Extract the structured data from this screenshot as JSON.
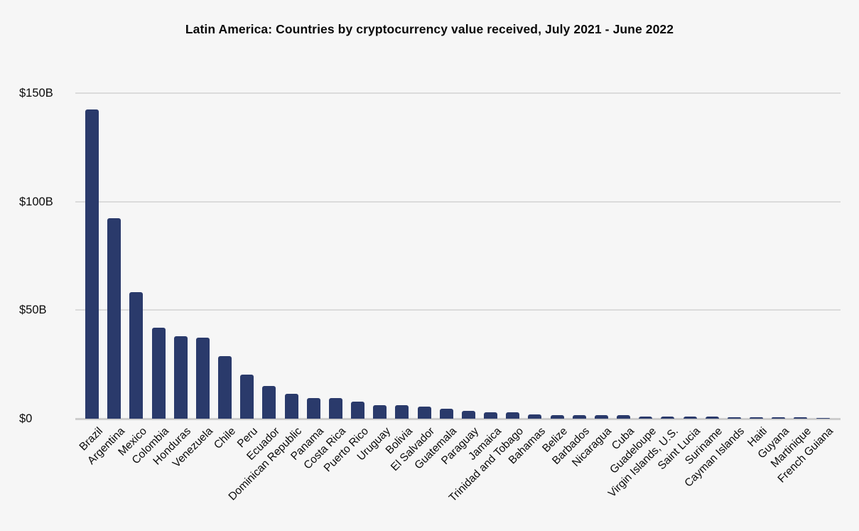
{
  "title": "Latin America: Countries by cryptocurrency value received, July 2021 - June 2022",
  "colors": {
    "bar": "#2a3a6b",
    "background": "#f6f6f6",
    "gridline": "#dbdbdb",
    "axis_line": "#cdcdcd",
    "text": "#0a0a0a"
  },
  "chart_data": {
    "type": "bar",
    "title": "Latin America: Countries by cryptocurrency value received, July 2021 - June 2022",
    "xlabel": "",
    "ylabel": "",
    "unit": "USD billions received",
    "ylim": [
      0,
      150
    ],
    "grid": true,
    "legend": false,
    "y_ticks": [
      {
        "value": 0,
        "label": "$0"
      },
      {
        "value": 50,
        "label": "$50B"
      },
      {
        "value": 100,
        "label": "$100B"
      },
      {
        "value": 150,
        "label": "$150B"
      }
    ],
    "categories": [
      "Brazil",
      "Argentina",
      "Mexico",
      "Colombia",
      "Honduras",
      "Venezuela",
      "Chile",
      "Peru",
      "Ecuador",
      "Dominican Republic",
      "Panama",
      "Costa Rica",
      "Puerto Rico",
      "Uruguay",
      "Bolivia",
      "El Salvador",
      "Guatemala",
      "Paraguay",
      "Jamaica",
      "Trinidad and Tobago",
      "Bahamas",
      "Belize",
      "Barbados",
      "Nicaragua",
      "Cuba",
      "Guadeloupe",
      "Virgin Islands, U.S.",
      "Saint Lucia",
      "Suriname",
      "Cayman Islands",
      "Haiti",
      "Guyana",
      "Martinique",
      "French Guiana"
    ],
    "values": [
      142.5,
      92.3,
      58.2,
      42.0,
      38.0,
      37.4,
      28.7,
      20.2,
      15.0,
      11.5,
      9.6,
      9.4,
      7.7,
      6.2,
      6.1,
      5.6,
      4.6,
      3.6,
      3.0,
      2.8,
      2.0,
      1.8,
      1.7,
      1.6,
      1.5,
      1.0,
      0.95,
      0.9,
      0.85,
      0.65,
      0.6,
      0.55,
      0.5,
      0.45
    ]
  }
}
